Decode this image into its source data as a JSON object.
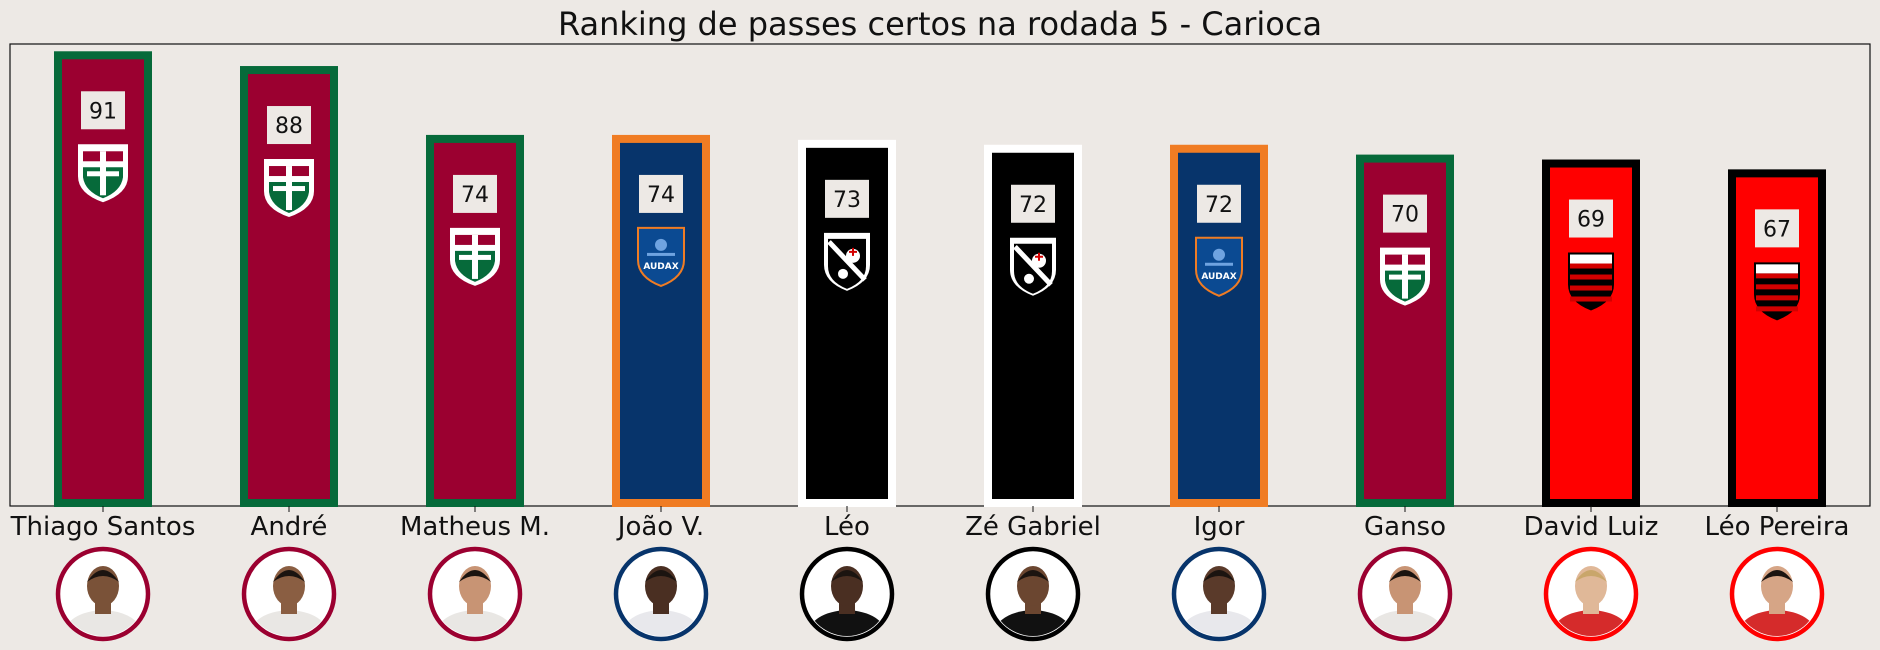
{
  "chart_data": {
    "type": "bar",
    "title": "Ranking de passes certos na rodada 5 - Carioca",
    "xlabel": "",
    "ylabel": "",
    "ylim": [
      0,
      100
    ],
    "grid": false,
    "categories": [
      "Thiago Santos",
      "André",
      "Matheus M.",
      "João V.",
      "Léo",
      "Zé Gabriel",
      "Igor",
      "Ganso",
      "David Luiz",
      "Léo Pereira"
    ],
    "values": [
      91,
      88,
      74,
      74,
      73,
      72,
      72,
      70,
      69,
      67
    ],
    "value_labels": [
      "91",
      "88",
      "74",
      "74",
      "73",
      "72",
      "72",
      "70",
      "69",
      "67"
    ],
    "teams": [
      "fluminense",
      "fluminense",
      "fluminense",
      "audax",
      "vasco",
      "vasco",
      "audax",
      "fluminense",
      "flamengo",
      "flamengo"
    ]
  },
  "team_colors": {
    "fluminense": {
      "fill": "#9b0030",
      "edge": "#066a3a",
      "avatar_ring": "#9b0030",
      "crest_icon": "fluminense-crest-icon"
    },
    "audax": {
      "fill": "#07346b",
      "edge": "#f07c23",
      "avatar_ring": "#07346b",
      "crest_icon": "audax-crest-icon"
    },
    "vasco": {
      "fill": "#000000",
      "edge": "#ffffff",
      "avatar_ring": "#000000",
      "crest_icon": "vasco-crest-icon"
    },
    "flamengo": {
      "fill": "#ff0000",
      "edge": "#000000",
      "avatar_ring": "#ff0000",
      "crest_icon": "flamengo-crest-icon"
    }
  },
  "crest_texts": {
    "audax": "AUDAX"
  },
  "background_color": "#ede9e5"
}
